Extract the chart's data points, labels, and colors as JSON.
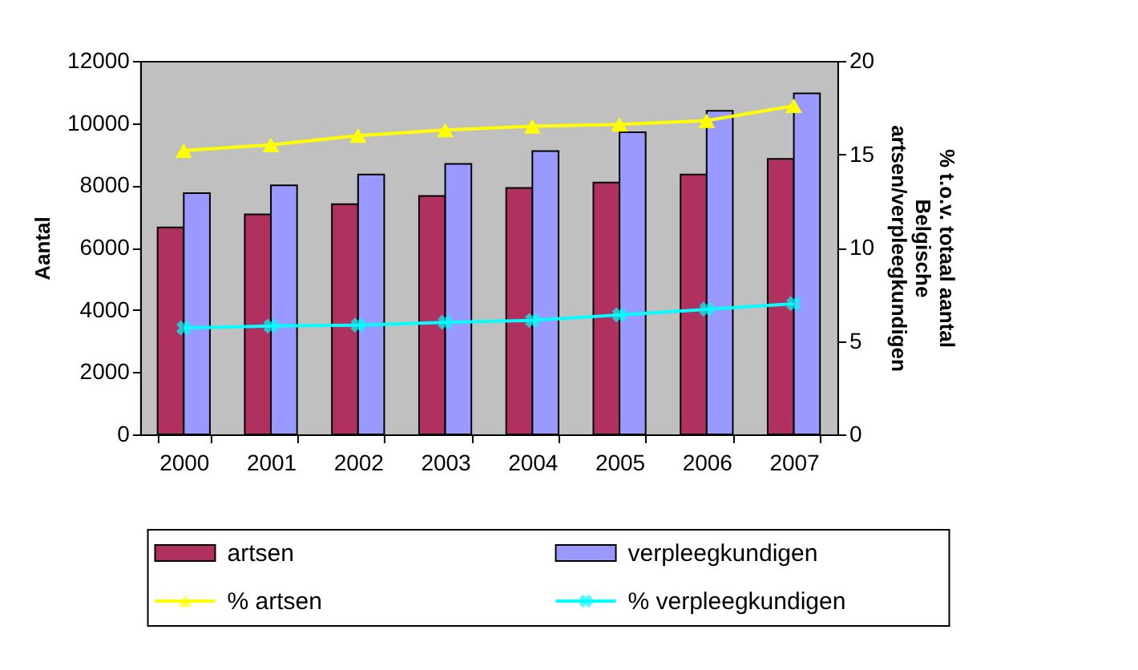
{
  "chart_data": {
    "type": "bar",
    "categories": [
      "2000",
      "2001",
      "2002",
      "2003",
      "2004",
      "2005",
      "2006",
      "2007"
    ],
    "ylabel": "Aantal",
    "y2label": "% t.o.v. totaal aantal\nBelgische\nartsen/verpleegkundigen",
    "ylim": [
      0,
      12000
    ],
    "yticks": [
      0,
      2000,
      4000,
      6000,
      8000,
      10000,
      12000
    ],
    "y2lim": [
      0,
      20
    ],
    "y2ticks": [
      0,
      5,
      10,
      15,
      20
    ],
    "grid": false,
    "legend": "bottom",
    "series": [
      {
        "name": "artsen",
        "color": "#b03060",
        "values": [
          6650,
          7070,
          7400,
          7660,
          7920,
          8090,
          8350,
          8850
        ]
      },
      {
        "name": "verpleegkundigen",
        "color": "#9999ff",
        "values": [
          7750,
          8000,
          8350,
          8690,
          9100,
          9710,
          10400,
          10960
        ]
      },
      {
        "name": "% artsen",
        "type": "line",
        "axis": "y2",
        "marker": "triangle",
        "color": "#ffff00",
        "values": [
          15.2,
          15.5,
          16.0,
          16.3,
          16.5,
          16.6,
          16.8,
          17.6
        ]
      },
      {
        "name": "% verpleegkundigen",
        "type": "line",
        "axis": "y2",
        "marker": "cross",
        "color": "#00ffff",
        "values": [
          5.7,
          5.8,
          5.85,
          6.0,
          6.1,
          6.4,
          6.7,
          7.0
        ]
      }
    ]
  }
}
